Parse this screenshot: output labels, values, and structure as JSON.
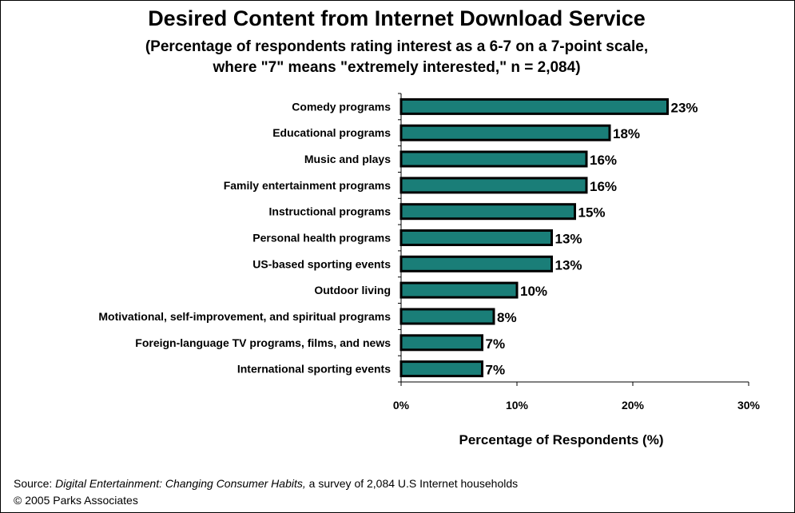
{
  "chart_data": {
    "type": "bar",
    "orientation": "horizontal",
    "title": "Desired Content from Internet Download Service",
    "subtitle_lines": [
      "(Percentage of respondents rating interest as a 6-7 on a 7-point scale,",
      "where \"7\" means \"extremely interested,\" n = 2,084)"
    ],
    "categories": [
      "Comedy programs",
      "Educational programs",
      "Music and plays",
      "Family entertainment programs",
      "Instructional programs",
      "Personal health programs",
      "US-based sporting events",
      "Outdoor living",
      "Motivational, self-improvement, and spiritual programs",
      "Foreign-language TV programs, films, and news",
      "International sporting events"
    ],
    "values": [
      23,
      18,
      16,
      16,
      15,
      13,
      13,
      10,
      8,
      7,
      7
    ],
    "value_labels": [
      "23%",
      "18%",
      "16%",
      "16%",
      "15%",
      "13%",
      "13%",
      "10%",
      "8%",
      "7%",
      "7%"
    ],
    "xlabel": "Percentage of Respondents (%)",
    "xlim": [
      0,
      30
    ],
    "xticks": [
      0,
      10,
      20,
      30
    ],
    "xtick_labels": [
      "0%",
      "10%",
      "20%",
      "30%"
    ],
    "grid": false,
    "legend": "none",
    "bar_color": "#1a7e78",
    "bar_edge_color": "#000000"
  },
  "footer": {
    "source_prefix": "Source: ",
    "source_title": "Digital Entertainment: Changing Consumer Habits,",
    "source_rest": " a survey of 2,084 U.S Internet households",
    "copyright": "© 2005 Parks Associates"
  }
}
